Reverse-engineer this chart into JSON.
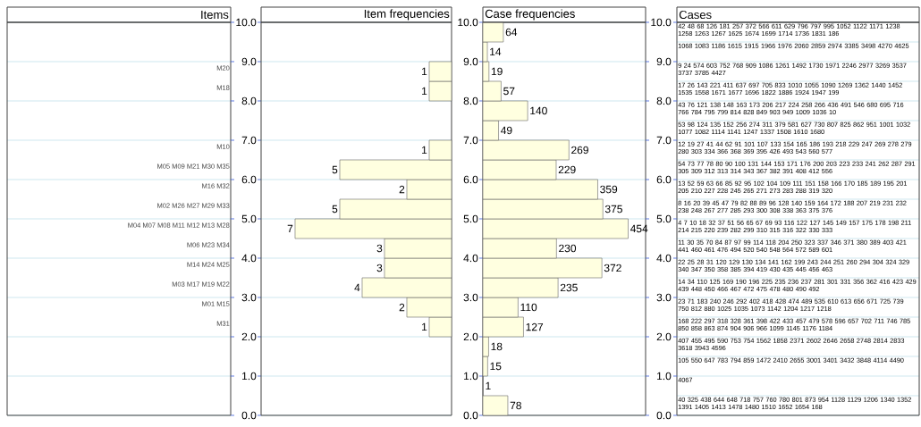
{
  "chart_data": [
    {
      "type": "bar",
      "orientation": "horizontal",
      "title": "Item frequencies",
      "color": "#ffffe0",
      "x": [
        0.25,
        0.75,
        1.25,
        1.75,
        2.25,
        2.75,
        3.25,
        3.75,
        4.25,
        4.75,
        5.25,
        5.75,
        6.25,
        6.75,
        7.25,
        7.75,
        8.25,
        8.75,
        9.25,
        9.75
      ],
      "values": [
        0,
        0,
        0,
        0,
        1,
        2,
        4,
        3,
        3,
        7,
        5,
        2,
        5,
        1,
        0,
        0,
        1,
        1,
        0,
        0
      ],
      "value_labels": [
        null,
        null,
        null,
        null,
        "1",
        "2",
        "4",
        "3",
        "3",
        "7",
        "5",
        "2",
        "5",
        "1",
        null,
        null,
        "1",
        "1",
        null,
        null
      ],
      "ylim": [
        0,
        10
      ],
      "yticks": [
        {
          "value": 0,
          "label": "0.0"
        },
        {
          "value": 1,
          "label": "1.0"
        },
        {
          "value": 2,
          "label": "2.0"
        },
        {
          "value": 3,
          "label": "3.0"
        },
        {
          "value": 4,
          "label": "4.0"
        },
        {
          "value": 5,
          "label": "5.0"
        },
        {
          "value": 6,
          "label": "6.0"
        },
        {
          "value": 7,
          "label": "7.0"
        },
        {
          "value": 8,
          "label": "8.0"
        },
        {
          "value": 9,
          "label": "9.0"
        },
        {
          "value": 10,
          "label": "10.0"
        }
      ],
      "grid": "y",
      "annotations": [
        "Items",
        "M20",
        "M18",
        "M10",
        "M05 M09 M21 M30 M35",
        "M16 M32",
        "M02 M26 M27 M29 M33",
        "M04 M07 M08 M11 M12 M13 M28",
        "M06 M23 M34",
        "M14 M24 M25",
        "M03 M17 M19 M22",
        "M01 M15",
        "M31"
      ]
    },
    {
      "type": "bar",
      "orientation": "horizontal",
      "title": "Case frequencies",
      "color": "#ffffe0",
      "x": [
        0.25,
        0.75,
        1.25,
        1.75,
        2.25,
        2.75,
        3.25,
        3.75,
        4.25,
        4.75,
        5.25,
        5.75,
        6.25,
        6.75,
        7.25,
        7.75,
        8.25,
        8.75,
        9.25,
        9.75
      ],
      "values": [
        78,
        1,
        15,
        18,
        127,
        110,
        235,
        372,
        230,
        454,
        375,
        359,
        229,
        269,
        49,
        140,
        57,
        19,
        14,
        64
      ],
      "data_labels": true,
      "ylim": [
        0,
        10
      ],
      "yticks": [
        {
          "value": 0,
          "label": "0.0"
        },
        {
          "value": 1,
          "label": "1.0"
        },
        {
          "value": 2,
          "label": "2.0"
        },
        {
          "value": 3,
          "label": "3.0"
        },
        {
          "value": 4,
          "label": "4.0"
        },
        {
          "value": 5,
          "label": "5.0"
        },
        {
          "value": 6,
          "label": "6.0"
        },
        {
          "value": 7,
          "label": "7.0"
        },
        {
          "value": 8,
          "label": "8.0"
        },
        {
          "value": 9,
          "label": "9.0"
        },
        {
          "value": 10,
          "label": "10.0"
        }
      ],
      "y2lim": [
        0,
        10
      ],
      "y2ticks": [
        {
          "value": 0,
          "label": "0.0"
        },
        {
          "value": 1,
          "label": "1.0"
        },
        {
          "value": 2,
          "label": "2.0"
        },
        {
          "value": 3,
          "label": "3.0"
        },
        {
          "value": 4,
          "label": "4.0"
        },
        {
          "value": 5,
          "label": "5.0"
        },
        {
          "value": 6,
          "label": "6.0"
        },
        {
          "value": 7,
          "label": "7.0"
        },
        {
          "value": 8,
          "label": "8.0"
        },
        {
          "value": 9,
          "label": "9.0"
        },
        {
          "value": 10,
          "label": "10.0"
        }
      ],
      "grid": "y",
      "annotations": [
        "Cases",
        "42 48 68 126 181 257 372 566 611 629 796 797 995 1052 1122 1171 1238 1258 1263 1267 1625 1674 1699 1714 1736 1831 186",
        "1068 1083 1186 1615 1915 1966 1976 2060 2859 2974 3385 3498 4270 4625",
        "9 24 574 603 752 768 909 1086 1261 1492 1730 1971 2246 2977 3269 3537 3737 3785 4427",
        "17 26 143 221 411 637 697 705 833 1010 1055 1090 1269 1362 1440 1452 1535 1558 1671 1677 1696 1822 1886 1924 1947 199",
        "43 76 121 138 148 163 173 206 217 224 258 266 436 491 546 680 695 716 766 784 795 799 814 828 849 903 949 1009 1036 10",
        "53 98 124 135 152 256 274 311 379 581 627 730 807 825 862 951 1001 1032 1077 1082 1114 1141 1247 1337 1508 1610 1680",
        "12 19 27 41 44 62 91 101 107 133 154 165 186 193 218 229 247 269 278 279 280 303 334 366 368 369 395 426 493 543 560 577",
        "54 73 77 78 80 90 100 131 144 153 171 176 200 203 223 233 241 262 287 291 305 309 312 313 314 343 367 382 391 408 412 556",
        "13 52 59 63 66 85 92 95 102 104 109 111 151 158 166 170 185 189 195 201 205 210 227 228 245 265 271 273 283 288 319 320",
        "8 16 20 39 45 47 79 82 88 89 96 128 140 159 164 172 188 207 219 231 232 238 248 267 277 285 293 300 308 338 363 375 376",
        "4 7 10 18 32 37 51 56 65 67 69 93 116 122 127 145 149 157 175 178 198 211 214 215 220 239 282 299 310 315 316 322 330 333",
        "11 30 35 70 84 87 97 99 114 118 204 250 323 337 346 371 380 389 403 421 441 460 461 476 494 520 540 548 564 572 589 601",
        "22 25 28 31 120 129 130 134 141 162 199 243 244 251 260 294 304 324 329 340 347 350 358 385 394 419 430 435 445 456 463",
        "14 34 110 125 169 190 196 225 235 236 237 281 301 331 356 362 416 423 429 439 448 450 466 467 472 475 478 480 490 492",
        "23 71 183 240 246 292 402 418 428 474 489 535 610 613 656 671 725 739 750 812 880 1025 1035 1073 1142 1204 1217 1218",
        "168 222 297 318 328 361 398 422 433 457 479 578 596 657 702 711 746 785 850 858 863 874 904 906 966 1099 1145 1176 1184",
        "407 455 495 590 753 754 1562 1858 2371 2602 2646 2658 2748 2814 2833 3618 3943 4596",
        "105 550 647 783 794 859 1472 2410 2655 3001 3401 3432 3848 4114 4490",
        "4067",
        "40 325 438 644 648 718 757 760 780 801 873 954 1128 1129 1206 1340 1352 1391 1405 1413 1478 1480 1510 1652 1654 168"
      ]
    }
  ]
}
